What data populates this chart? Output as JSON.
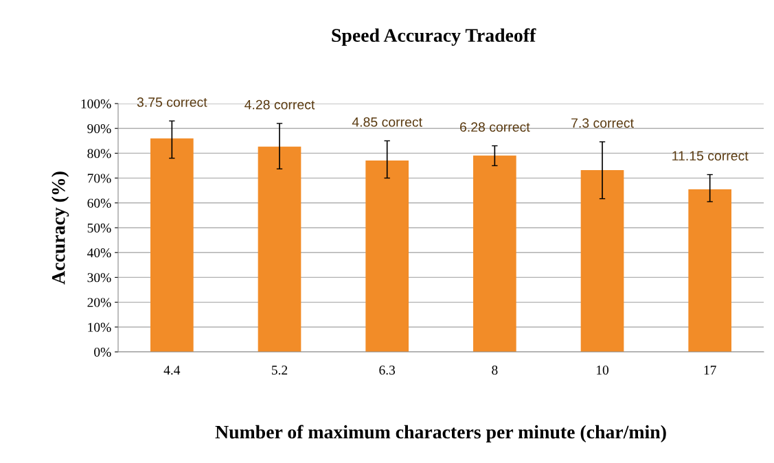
{
  "chart_data": {
    "type": "bar",
    "title": "Speed Accuracy Tradeoff",
    "xlabel": "Number of maximum characters per minute (char/min)",
    "ylabel": "Accuracy (%)",
    "categories": [
      "4.4",
      "5.2",
      "6.3",
      "8",
      "10",
      "17"
    ],
    "values": [
      86,
      82.7,
      77.1,
      79.1,
      73.2,
      65.5
    ],
    "errors": [
      [
        78,
        93
      ],
      [
        73.7,
        92
      ],
      [
        70,
        85
      ],
      [
        75,
        83
      ],
      [
        61.7,
        84.6
      ],
      [
        60.5,
        71.4
      ]
    ],
    "color": "#f28c28",
    "ylim": [
      0,
      100
    ],
    "yticks": [
      {
        "value": 0,
        "label": "0%"
      },
      {
        "value": 10,
        "label": "10%"
      },
      {
        "value": 20,
        "label": "20%"
      },
      {
        "value": 30,
        "label": "30%"
      },
      {
        "value": 40,
        "label": "40%"
      },
      {
        "value": 50,
        "label": "50%"
      },
      {
        "value": 60,
        "label": "60%"
      },
      {
        "value": 70,
        "label": "70%"
      },
      {
        "value": 80,
        "label": "80%"
      },
      {
        "value": 90,
        "label": "90%"
      },
      {
        "value": 100,
        "label": "100%"
      }
    ],
    "grid": "y",
    "annotations": [
      {
        "text": "3.75 correct",
        "x": "4.4",
        "y": 93
      },
      {
        "text": "4.28 correct",
        "x": "5.2",
        "y": 92
      },
      {
        "text": "4.85 correct",
        "x": "6.3",
        "y": 85
      },
      {
        "text": "6.28 correct",
        "x": "8",
        "y": 83
      },
      {
        "text": "7.3 correct",
        "x": "10",
        "y": 84.6
      },
      {
        "text": "11.15 correct",
        "x": "17",
        "y": 71.4
      }
    ]
  }
}
